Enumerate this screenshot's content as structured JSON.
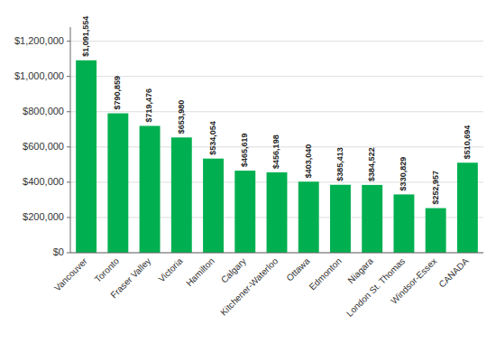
{
  "chart_data": {
    "type": "bar",
    "categories": [
      "Vancouver",
      "Toronto",
      "Fraser Valley",
      "Victoria",
      "Hamilton",
      "Calgary",
      "Kitchener-Waterloo",
      "Ottawa",
      "Edmonton",
      "Niagara",
      "London St. Thomas",
      "Windsor-Essex",
      "CANADA"
    ],
    "values": [
      1091554,
      790859,
      719476,
      653980,
      534054,
      465619,
      456198,
      403040,
      385413,
      384522,
      330829,
      252957,
      510694
    ],
    "value_labels": [
      "$1,091,554",
      "$790,859",
      "$719,476",
      "$653,980",
      "$534,054",
      "$465,619",
      "$456,198",
      "$403,040",
      "$385,413",
      "$384,522",
      "$330,829",
      "$252,957",
      "$510,694"
    ],
    "data_labels": true,
    "color": "#00B050",
    "ylim": [
      0,
      1280000
    ],
    "yticks": [
      {
        "value": 0,
        "label": "$0"
      },
      {
        "value": 200000,
        "label": "$200,000"
      },
      {
        "value": 400000,
        "label": "$400,000"
      },
      {
        "value": 600000,
        "label": "$600,000"
      },
      {
        "value": 800000,
        "label": "$800,000"
      },
      {
        "value": 1000000,
        "label": "$1,000,000"
      },
      {
        "value": 1200000,
        "label": "$1,200,000"
      }
    ],
    "grid": true
  }
}
